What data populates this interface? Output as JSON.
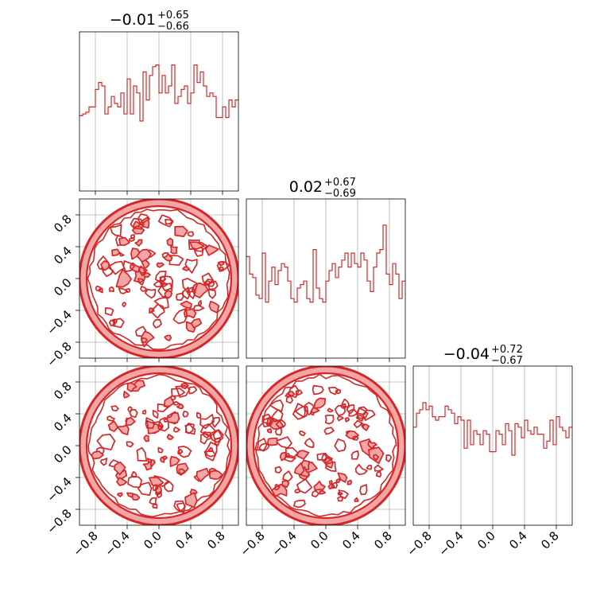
{
  "chart_data": {
    "type": "corner",
    "parameter_ranges": [
      [
        -1,
        1
      ],
      [
        -1,
        1
      ],
      [
        -1,
        1
      ]
    ],
    "tick_values": [
      -0.8,
      -0.4,
      0.0,
      0.4,
      0.8
    ],
    "tick_labels": [
      "−0.8",
      "−0.4",
      "0.0",
      "0.4",
      "0.8"
    ],
    "grid": true,
    "line_color": "#d62728",
    "fill_color": "#f4a6a6",
    "grid_color": "#b0b0b0",
    "titles": [
      {
        "value": "−0.01",
        "plus": "+0.65",
        "minus": "−0.66"
      },
      {
        "value": "0.02",
        "plus": "+0.67",
        "minus": "−0.69"
      },
      {
        "value": "−0.04",
        "plus": "+0.72",
        "minus": "−0.67"
      }
    ],
    "histograms": [
      {
        "bin_range": [
          -1,
          1
        ],
        "ymax": 0.3,
        "counts": [
          0.215,
          0.22,
          0.225,
          0.24,
          0.24,
          0.29,
          0.31,
          0.3,
          0.22,
          0.24,
          0.27,
          0.25,
          0.24,
          0.28,
          0.22,
          0.32,
          0.22,
          0.3,
          0.28,
          0.2,
          0.34,
          0.26,
          0.33,
          0.355,
          0.36,
          0.28,
          0.33,
          0.28,
          0.3,
          0.36,
          0.25,
          0.27,
          0.29,
          0.3,
          0.25,
          0.28,
          0.36,
          0.31,
          0.34,
          0.3,
          0.27,
          0.28,
          0.27,
          0.21,
          0.21,
          0.24,
          0.21,
          0.26,
          0.24,
          0.26
        ]
      },
      {
        "bin_range": [
          -1,
          1
        ],
        "ymax": 0.3,
        "counts": [
          0.29,
          0.24,
          0.23,
          0.18,
          0.17,
          0.3,
          0.16,
          0.22,
          0.26,
          0.21,
          0.25,
          0.27,
          0.26,
          0.22,
          0.17,
          0.16,
          0.2,
          0.21,
          0.22,
          0.17,
          0.16,
          0.31,
          0.2,
          0.17,
          0.16,
          0.22,
          0.25,
          0.27,
          0.23,
          0.26,
          0.28,
          0.3,
          0.26,
          0.3,
          0.27,
          0.26,
          0.3,
          0.28,
          0.22,
          0.19,
          0.26,
          0.3,
          0.31,
          0.38,
          0.24,
          0.21,
          0.27,
          0.24,
          0.17,
          0.22
        ]
      },
      {
        "bin_range": [
          -1,
          1
        ],
        "ymax": 0.3,
        "counts": [
          0.28,
          0.32,
          0.33,
          0.35,
          0.33,
          0.34,
          0.31,
          0.3,
          0.31,
          0.31,
          0.34,
          0.33,
          0.32,
          0.29,
          0.31,
          0.3,
          0.22,
          0.3,
          0.23,
          0.27,
          0.26,
          0.23,
          0.27,
          0.26,
          0.21,
          0.21,
          0.27,
          0.26,
          0.23,
          0.29,
          0.27,
          0.2,
          0.29,
          0.28,
          0.25,
          0.3,
          0.27,
          0.26,
          0.28,
          0.26,
          0.26,
          0.22,
          0.24,
          0.3,
          0.23,
          0.31,
          0.28,
          0.27,
          0.25,
          0.28
        ]
      }
    ],
    "scatter_pairs": [
      {
        "x_param": 0,
        "y_param": 1,
        "shape": "disk",
        "radius": 1.0
      },
      {
        "x_param": 0,
        "y_param": 2,
        "shape": "disk",
        "radius": 1.0
      },
      {
        "x_param": 1,
        "y_param": 2,
        "shape": "disk",
        "radius": 1.0
      }
    ]
  }
}
